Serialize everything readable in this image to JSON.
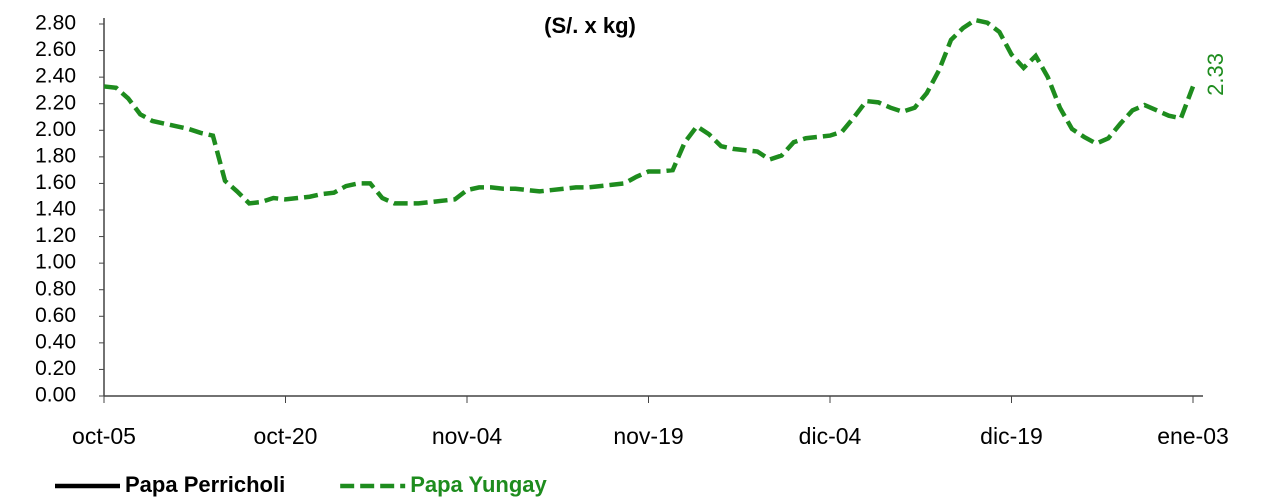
{
  "chart_data": {
    "type": "line",
    "title": "(S/. x kg)",
    "categories": [
      "oct-05",
      null,
      null,
      null,
      null,
      null,
      null,
      null,
      null,
      null,
      null,
      null,
      null,
      null,
      null,
      "oct-20",
      null,
      null,
      null,
      null,
      null,
      null,
      null,
      null,
      null,
      null,
      null,
      null,
      null,
      null,
      "nov-04",
      null,
      null,
      null,
      null,
      null,
      null,
      null,
      null,
      null,
      null,
      null,
      null,
      null,
      null,
      "nov-19",
      null,
      null,
      null,
      null,
      null,
      null,
      null,
      null,
      null,
      null,
      null,
      null,
      null,
      null,
      "dic-04",
      null,
      null,
      null,
      null,
      null,
      null,
      null,
      null,
      null,
      null,
      null,
      null,
      null,
      null,
      "dic-19",
      null,
      null,
      null,
      null,
      null,
      null,
      null,
      null,
      null,
      null,
      null,
      null,
      null,
      null,
      "ene-03"
    ],
    "series": [
      {
        "name": "Papa Perricholi",
        "color": "#000000",
        "dash": false,
        "values": [
          null,
          null,
          null,
          null,
          null,
          null,
          null,
          null,
          null,
          null,
          null,
          null,
          null,
          null,
          null,
          null,
          null,
          null,
          null,
          null,
          null,
          null,
          null,
          null,
          null,
          null,
          null,
          null,
          null,
          null,
          null,
          null,
          null,
          null,
          null,
          null,
          null,
          null,
          null,
          null,
          null,
          null,
          null,
          null,
          null,
          null,
          null,
          null,
          null,
          null,
          null,
          null,
          null,
          null,
          null,
          null,
          null,
          null,
          null,
          null,
          null,
          null,
          null,
          null,
          null,
          null,
          null,
          null,
          null,
          null,
          null,
          null,
          null,
          null,
          null,
          null,
          null,
          null,
          null,
          null,
          null,
          null,
          null,
          null,
          null,
          null,
          null,
          null,
          null,
          null,
          null
        ]
      },
      {
        "name": "Papa Yungay",
        "color": "#1e8c1e",
        "dash": true,
        "values": [
          2.33,
          2.32,
          2.24,
          2.12,
          2.07,
          2.05,
          2.03,
          2.01,
          1.98,
          1.96,
          1.62,
          1.54,
          1.45,
          1.46,
          1.49,
          1.48,
          1.49,
          1.5,
          1.52,
          1.53,
          1.58,
          1.6,
          1.6,
          1.49,
          1.45,
          1.45,
          1.45,
          1.46,
          1.47,
          1.48,
          1.55,
          1.57,
          1.57,
          1.56,
          1.56,
          1.55,
          1.54,
          1.55,
          1.56,
          1.57,
          1.57,
          1.58,
          1.59,
          1.6,
          1.65,
          1.69,
          1.69,
          1.7,
          1.91,
          2.03,
          1.97,
          1.88,
          1.86,
          1.85,
          1.84,
          1.78,
          1.81,
          1.91,
          1.94,
          1.95,
          1.96,
          1.99,
          2.1,
          2.22,
          2.21,
          2.17,
          2.14,
          2.17,
          2.28,
          2.45,
          2.68,
          2.77,
          2.83,
          2.81,
          2.74,
          2.57,
          2.47,
          2.56,
          2.4,
          2.17,
          2.01,
          1.95,
          1.9,
          1.94,
          2.05,
          2.15,
          2.19,
          2.15,
          2.11,
          2.09,
          2.33
        ]
      }
    ],
    "ylim": [
      0,
      2.8
    ],
    "yticks": [
      {
        "value": 0,
        "label": "0.00"
      },
      {
        "value": 0.2,
        "label": "0.20"
      },
      {
        "value": 0.4,
        "label": "0.40"
      },
      {
        "value": 0.6,
        "label": "0.60"
      },
      {
        "value": 0.8,
        "label": "0.80"
      },
      {
        "value": 1,
        "label": "1.00"
      },
      {
        "value": 1.2,
        "label": "1.20"
      },
      {
        "value": 1.4,
        "label": "1.40"
      },
      {
        "value": 1.6,
        "label": "1.60"
      },
      {
        "value": 1.8,
        "label": "1.80"
      },
      {
        "value": 2,
        "label": "2.00"
      },
      {
        "value": 2.2,
        "label": "2.20"
      },
      {
        "value": 2.4,
        "label": "2.40"
      },
      {
        "value": 2.6,
        "label": "2.60"
      },
      {
        "value": 2.8,
        "label": "2.80"
      }
    ],
    "grid": false,
    "legend": "bottom"
  }
}
